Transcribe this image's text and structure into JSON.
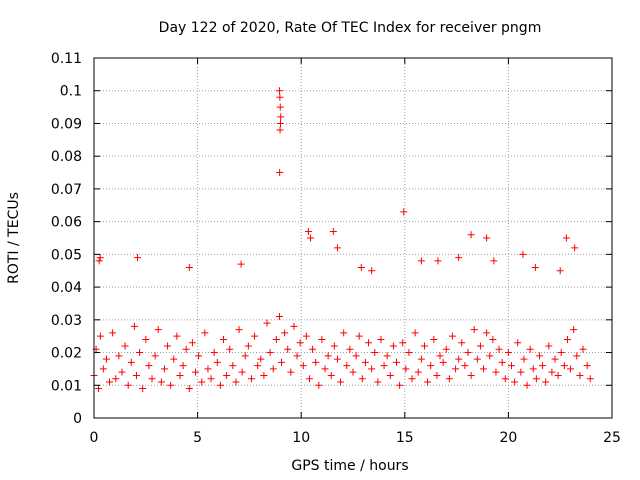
{
  "chart_data": {
    "type": "scatter",
    "title": "Day 122 of 2020, Rate Of TEC Index for receiver pngm",
    "xlabel": "GPS time / hours",
    "ylabel": "ROTI / TECUs",
    "xlim": [
      0,
      25
    ],
    "ylim": [
      0,
      0.11
    ],
    "x_ticks": [
      "0",
      "5",
      "10",
      "15",
      "20",
      "25"
    ],
    "y_ticks": [
      "0",
      "0.01",
      "0.02",
      "0.03",
      "0.04",
      "0.05",
      "0.06",
      "0.07",
      "0.08",
      "0.09",
      "0.1",
      "0.11"
    ],
    "grid": true,
    "marker": "+",
    "marker_color": "#ff0000",
    "series": [
      {
        "name": "ROTI",
        "x": [
          0.0,
          0.1,
          0.22,
          0.31,
          0.45,
          0.6,
          0.75,
          0.9,
          1.05,
          1.2,
          1.35,
          1.5,
          1.65,
          1.8,
          1.95,
          2.05,
          2.2,
          2.35,
          2.5,
          2.65,
          2.8,
          2.95,
          3.1,
          3.25,
          3.4,
          3.55,
          3.7,
          3.85,
          4.0,
          4.15,
          4.3,
          4.45,
          4.6,
          4.75,
          4.9,
          5.05,
          5.2,
          5.35,
          5.5,
          5.65,
          5.8,
          5.95,
          6.1,
          6.25,
          6.4,
          6.55,
          6.7,
          6.85,
          7.0,
          7.15,
          7.3,
          7.45,
          7.6,
          7.75,
          7.9,
          8.05,
          8.2,
          8.35,
          8.5,
          8.65,
          8.8,
          8.95,
          9.05,
          9.2,
          9.35,
          9.5,
          9.65,
          9.8,
          9.95,
          10.1,
          10.25,
          10.4,
          10.55,
          10.7,
          10.85,
          11.0,
          11.15,
          11.3,
          11.45,
          11.6,
          11.75,
          11.9,
          12.05,
          12.2,
          12.35,
          12.5,
          12.65,
          12.8,
          12.95,
          13.1,
          13.25,
          13.4,
          13.55,
          13.7,
          13.85,
          14.0,
          14.15,
          14.3,
          14.45,
          14.6,
          14.75,
          14.9,
          15.05,
          15.2,
          15.35,
          15.5,
          15.65,
          15.8,
          15.95,
          16.1,
          16.25,
          16.4,
          16.55,
          16.7,
          16.85,
          17.0,
          17.15,
          17.3,
          17.45,
          17.6,
          17.75,
          17.9,
          18.05,
          18.2,
          18.35,
          18.5,
          18.65,
          18.8,
          18.95,
          19.1,
          19.25,
          19.4,
          19.55,
          19.7,
          19.85,
          20.0,
          20.15,
          20.3,
          20.45,
          20.6,
          20.75,
          20.9,
          21.05,
          21.2,
          21.35,
          21.5,
          21.65,
          21.8,
          21.95,
          22.1,
          22.25,
          22.4,
          22.55,
          22.7,
          22.85,
          23.0,
          23.15,
          23.3,
          23.45,
          23.6,
          23.8,
          23.95,
          8.95,
          8.97,
          8.99,
          9.01,
          9.0,
          8.98,
          8.96,
          14.95,
          10.35,
          10.45,
          11.55,
          11.75,
          18.2,
          18.95,
          22.8,
          23.2,
          20.7,
          19.3,
          17.6,
          15.8,
          4.6,
          7.1,
          2.1,
          0.3,
          0.25,
          12.9,
          13.4,
          16.6,
          21.3,
          22.5
        ],
        "y": [
          0.013,
          0.021,
          0.009,
          0.025,
          0.015,
          0.018,
          0.011,
          0.026,
          0.012,
          0.019,
          0.014,
          0.022,
          0.01,
          0.017,
          0.028,
          0.013,
          0.02,
          0.009,
          0.024,
          0.016,
          0.012,
          0.019,
          0.027,
          0.011,
          0.015,
          0.022,
          0.01,
          0.018,
          0.025,
          0.013,
          0.016,
          0.021,
          0.009,
          0.023,
          0.014,
          0.019,
          0.011,
          0.026,
          0.015,
          0.012,
          0.02,
          0.017,
          0.01,
          0.024,
          0.013,
          0.021,
          0.016,
          0.011,
          0.027,
          0.014,
          0.019,
          0.022,
          0.012,
          0.025,
          0.016,
          0.018,
          0.013,
          0.029,
          0.02,
          0.015,
          0.024,
          0.031,
          0.017,
          0.026,
          0.021,
          0.014,
          0.028,
          0.019,
          0.023,
          0.016,
          0.025,
          0.012,
          0.021,
          0.017,
          0.01,
          0.024,
          0.015,
          0.019,
          0.013,
          0.022,
          0.018,
          0.011,
          0.026,
          0.016,
          0.021,
          0.014,
          0.019,
          0.025,
          0.012,
          0.017,
          0.023,
          0.015,
          0.02,
          0.011,
          0.024,
          0.016,
          0.019,
          0.013,
          0.022,
          0.017,
          0.01,
          0.023,
          0.015,
          0.02,
          0.012,
          0.026,
          0.014,
          0.018,
          0.022,
          0.011,
          0.016,
          0.024,
          0.013,
          0.019,
          0.017,
          0.021,
          0.012,
          0.025,
          0.015,
          0.018,
          0.023,
          0.016,
          0.02,
          0.013,
          0.027,
          0.018,
          0.022,
          0.015,
          0.026,
          0.019,
          0.024,
          0.014,
          0.021,
          0.017,
          0.012,
          0.02,
          0.016,
          0.011,
          0.023,
          0.014,
          0.018,
          0.01,
          0.021,
          0.015,
          0.012,
          0.019,
          0.016,
          0.011,
          0.022,
          0.014,
          0.018,
          0.013,
          0.02,
          0.016,
          0.024,
          0.015,
          0.027,
          0.019,
          0.013,
          0.021,
          0.016,
          0.012,
          0.1,
          0.098,
          0.095,
          0.092,
          0.09,
          0.088,
          0.075,
          0.063,
          0.057,
          0.055,
          0.057,
          0.052,
          0.056,
          0.055,
          0.055,
          0.052,
          0.05,
          0.048,
          0.049,
          0.048,
          0.046,
          0.047,
          0.049,
          0.049,
          0.048,
          0.046,
          0.045,
          0.048,
          0.046,
          0.045
        ]
      }
    ]
  }
}
